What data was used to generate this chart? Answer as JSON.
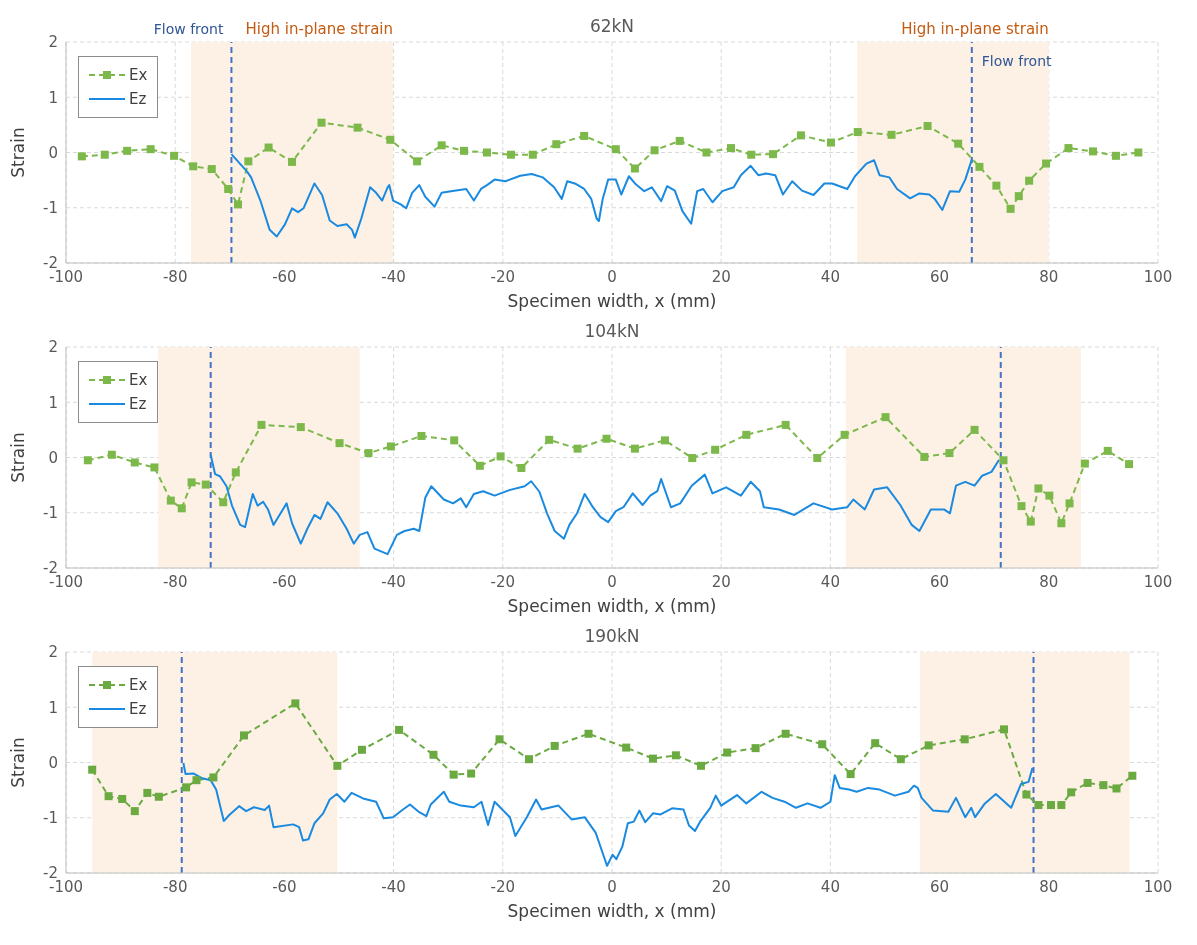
{
  "chart_data": [
    {
      "type": "line",
      "title": "62kN",
      "xlabel": "Specimen width, x (mm)",
      "ylabel": "Strain",
      "xlim": [
        -100,
        100
      ],
      "ylim": [
        -2,
        2
      ],
      "xticks": [
        -100,
        -80,
        -60,
        -40,
        -20,
        0,
        20,
        40,
        60,
        80,
        100
      ],
      "yticks": [
        -2,
        -1,
        0,
        1,
        2
      ],
      "grid": true,
      "legend": "top left",
      "series": [
        {
          "name": "Ex",
          "color": "#7cb84a",
          "marker": "square",
          "line_style": "dashed",
          "x": [
            -97.1,
            -92.9,
            -88.8,
            -84.5,
            -80.2,
            -76.7,
            -73.3,
            -70.3,
            -68.5,
            -66.6,
            -62.9,
            -58.6,
            -53.2,
            -46.6,
            -40.6,
            -35.7,
            -31.2,
            -27.1,
            -22.9,
            -18.5,
            -14.5,
            -10.2,
            -5.1,
            0.7,
            4.2,
            7.8,
            12.4,
            17.3,
            21.8,
            25.5,
            29.5,
            34.6,
            40.1,
            45.0,
            51.2,
            57.8,
            63.4,
            67.3,
            70.4,
            73.0,
            74.5,
            76.4,
            79.5,
            83.6,
            88.1,
            92.3,
            96.4
          ],
          "values": [
            -0.07,
            -0.04,
            0.03,
            0.06,
            -0.06,
            -0.25,
            -0.3,
            -0.66,
            -0.94,
            -0.16,
            0.09,
            -0.17,
            0.54,
            0.45,
            0.23,
            -0.16,
            0.13,
            0.03,
            0,
            -0.04,
            -0.04,
            0.15,
            0.3,
            0.06,
            -0.29,
            0.04,
            0.21,
            0,
            0.08,
            -0.04,
            -0.03,
            0.31,
            0.18,
            0.37,
            0.32,
            0.48,
            0.16,
            -0.26,
            -0.6,
            -1.02,
            -0.79,
            -0.51,
            -0.2,
            0.08,
            0.02,
            -0.06,
            0
          ]
        },
        {
          "name": "Ez",
          "color": "#1a8ae0",
          "marker": "none",
          "line_style": "solid",
          "x": [
            -69.7,
            -68.8,
            -66.8,
            -66.1,
            -64.4,
            -62.7,
            -61.4,
            -59.9,
            -58.6,
            -57.5,
            -56.5,
            -54.5,
            -53.1,
            -51.7,
            -50.3,
            -48.6,
            -47.6,
            -47.1,
            -45.9,
            -44.3,
            -43.2,
            -42.1,
            -41.1,
            -40.8,
            -40.1,
            -38.7,
            -37.7,
            -36.6,
            -35.3,
            -34.2,
            -32.5,
            -31.2,
            -29.5,
            -26.7,
            -25.3,
            -24.0,
            -22.9,
            -21.5,
            -19.5,
            -16.8,
            -14.7,
            -12.7,
            -10.6,
            -9.2,
            -8.2,
            -6.8,
            -5.1,
            -3.8,
            -2.8,
            -2.4,
            -1.7,
            -0.7,
            0.7,
            1.7,
            3.1,
            4.2,
            5.9,
            7.3,
            9.0,
            10.1,
            11.5,
            12.9,
            14.5,
            15.6,
            16.7,
            18.4,
            20.2,
            22.3,
            23.6,
            25.4,
            26.8,
            28.2,
            29.9,
            31.3,
            33.0,
            34.8,
            36.9,
            38.9,
            40.3,
            43.1,
            44.5,
            46.6,
            48.0,
            49.0,
            50.8,
            52.2,
            54.6,
            56.3,
            58.1,
            59.1,
            60.5,
            61.9,
            63.6,
            64.7,
            65.9
          ],
          "values": [
            -0.03,
            -0.13,
            -0.35,
            -0.45,
            -0.87,
            -1.4,
            -1.52,
            -1.3,
            -1.01,
            -1.08,
            -1.01,
            -0.56,
            -0.77,
            -1.23,
            -1.33,
            -1.3,
            -1.4,
            -1.54,
            -1.19,
            -0.63,
            -0.73,
            -0.87,
            -0.63,
            -0.59,
            -0.87,
            -0.94,
            -1.01,
            -0.73,
            -0.59,
            -0.8,
            -0.98,
            -0.73,
            -0.7,
            -0.66,
            -0.87,
            -0.66,
            -0.59,
            -0.49,
            -0.52,
            -0.42,
            -0.39,
            -0.45,
            -0.63,
            -0.84,
            -0.52,
            -0.56,
            -0.66,
            -0.84,
            -1.2,
            -1.24,
            -0.84,
            -0.49,
            -0.49,
            -0.76,
            -0.43,
            -0.56,
            -0.7,
            -0.63,
            -0.88,
            -0.61,
            -0.69,
            -1.06,
            -1.29,
            -0.7,
            -0.66,
            -0.9,
            -0.7,
            -0.63,
            -0.41,
            -0.24,
            -0.41,
            -0.38,
            -0.41,
            -0.76,
            -0.52,
            -0.69,
            -0.77,
            -0.56,
            -0.56,
            -0.66,
            -0.43,
            -0.2,
            -0.14,
            -0.41,
            -0.45,
            -0.66,
            -0.83,
            -0.74,
            -0.76,
            -0.84,
            -1.04,
            -0.7,
            -0.71,
            -0.49,
            -0.13
          ]
        }
      ],
      "ref_lines": [
        {
          "axis": "x",
          "value": -69.7,
          "label": "Flow front",
          "color": "#4472c4",
          "line_style": "dashed"
        },
        {
          "axis": "x",
          "value": 65.9,
          "label": "Flow front",
          "color": "#4472c4",
          "line_style": "dashed"
        }
      ],
      "bands": [
        {
          "axis": "x",
          "from": -77.1,
          "to": -40.1,
          "label": "High in-plane strain",
          "color": "#fdf1e6"
        },
        {
          "axis": "x",
          "from": 44.9,
          "to": 80.0,
          "label": "High in-plane strain",
          "color": "#fdf1e6"
        }
      ]
    },
    {
      "type": "line",
      "title": "104kN",
      "xlabel": "Specimen width, x (mm)",
      "ylabel": "Strain",
      "xlim": [
        -100,
        100
      ],
      "ylim": [
        -2,
        2
      ],
      "xticks": [
        -100,
        -80,
        -60,
        -40,
        -20,
        0,
        20,
        40,
        60,
        80,
        100
      ],
      "yticks": [
        -2,
        -1,
        0,
        1,
        2
      ],
      "grid": true,
      "legend": "top left",
      "series": [
        {
          "name": "Ex",
          "color": "#7cb84a",
          "marker": "square",
          "line_style": "dashed",
          "x": [
            -96.0,
            -91.6,
            -87.4,
            -83.8,
            -80.8,
            -78.8,
            -77.0,
            -74.4,
            -71.2,
            -68.9,
            -64.2,
            -57.0,
            -49.9,
            -44.6,
            -40.5,
            -34.9,
            -28.9,
            -24.2,
            -20.4,
            -16.6,
            -11.5,
            -6.3,
            -1.0,
            4.2,
            9.7,
            14.7,
            18.9,
            24.6,
            31.8,
            37.6,
            42.6,
            50.1,
            57.2,
            61.8,
            66.4,
            71.7,
            75.0,
            76.7,
            78.1,
            80.1,
            82.3,
            83.8,
            86.6,
            90.8,
            94.7
          ],
          "values": [
            -0.05,
            0.05,
            -0.09,
            -0.18,
            -0.78,
            -0.92,
            -0.45,
            -0.49,
            -0.81,
            -0.27,
            0.59,
            0.55,
            0.26,
            0.08,
            0.2,
            0.39,
            0.31,
            -0.15,
            0.02,
            -0.19,
            0.32,
            0.16,
            0.34,
            0.16,
            0.31,
            -0.01,
            0.14,
            0.41,
            0.59,
            -0.01,
            0.41,
            0.73,
            0.01,
            0.08,
            0.5,
            -0.05,
            -0.88,
            -1.16,
            -0.56,
            -0.69,
            -1.19,
            -0.83,
            -0.11,
            0.12,
            -0.12
          ]
        },
        {
          "name": "Ez",
          "color": "#1a8ae0",
          "marker": "none",
          "line_style": "solid",
          "x": [
            -73.5,
            -72.7,
            -71.8,
            -70.6,
            -69.6,
            -68.1,
            -67.2,
            -65.8,
            -64.9,
            -63.9,
            -63.0,
            -62.0,
            -59.6,
            -58.6,
            -57.0,
            -55.8,
            -54.5,
            -53.4,
            -52.1,
            -50.3,
            -48.6,
            -47.3,
            -46.2,
            -44.8,
            -43.5,
            -41.1,
            -39.4,
            -38.0,
            -36.3,
            -35.3,
            -34.2,
            -33.1,
            -30.8,
            -29.1,
            -27.7,
            -26.7,
            -25.3,
            -23.6,
            -21.5,
            -18.8,
            -16.0,
            -14.8,
            -13.3,
            -11.9,
            -10.5,
            -8.8,
            -7.8,
            -6.4,
            -5.0,
            -3.5,
            -2.1,
            -0.7,
            0.7,
            2.1,
            3.8,
            5.6,
            7.0,
            8.3,
            9.0,
            10.8,
            12.5,
            14.6,
            17.0,
            18.4,
            20.9,
            23.6,
            25.4,
            27.1,
            27.8,
            30.6,
            33.4,
            36.9,
            40.3,
            43.1,
            44.2,
            46.3,
            48.0,
            50.4,
            52.8,
            54.9,
            56.3,
            58.4,
            60.8,
            61.9,
            63.0,
            64.7,
            66.4,
            67.8,
            69.5,
            70.9
          ],
          "values": [
            0.05,
            -0.3,
            -0.34,
            -0.52,
            -0.87,
            -1.22,
            -1.26,
            -0.66,
            -0.87,
            -0.8,
            -0.94,
            -1.22,
            -0.83,
            -1.19,
            -1.56,
            -1.29,
            -1.04,
            -1.11,
            -0.81,
            -1.01,
            -1.29,
            -1.56,
            -1.4,
            -1.35,
            -1.65,
            -1.75,
            -1.4,
            -1.33,
            -1.29,
            -1.33,
            -0.73,
            -0.52,
            -0.76,
            -0.83,
            -0.74,
            -0.9,
            -0.66,
            -0.61,
            -0.69,
            -0.59,
            -0.52,
            -0.43,
            -0.62,
            -1.01,
            -1.33,
            -1.47,
            -1.22,
            -1.01,
            -0.66,
            -0.9,
            -1.08,
            -1.17,
            -0.97,
            -0.9,
            -0.65,
            -0.86,
            -0.69,
            -0.61,
            -0.39,
            -0.9,
            -0.83,
            -0.51,
            -0.31,
            -0.65,
            -0.54,
            -0.69,
            -0.44,
            -0.61,
            -0.9,
            -0.94,
            -1.04,
            -0.83,
            -0.94,
            -0.9,
            -0.76,
            -0.94,
            -0.58,
            -0.54,
            -0.86,
            -1.22,
            -1.33,
            -0.94,
            -0.94,
            -1.01,
            -0.51,
            -0.44,
            -0.51,
            -0.33,
            -0.26,
            -0.04
          ]
        }
      ],
      "ref_lines": [
        {
          "axis": "x",
          "value": -73.5,
          "color": "#4472c4",
          "line_style": "dashed"
        },
        {
          "axis": "x",
          "value": 71.2,
          "color": "#4472c4",
          "line_style": "dashed"
        }
      ],
      "bands": [
        {
          "axis": "x",
          "from": -83.1,
          "to": -46.2,
          "color": "#fdf1e6"
        },
        {
          "axis": "x",
          "from": 42.8,
          "to": 85.9,
          "color": "#fdf1e6"
        }
      ]
    },
    {
      "type": "line",
      "title": "190kN",
      "xlabel": "Specimen width, x (mm)",
      "ylabel": "Strain",
      "xlim": [
        -100,
        100
      ],
      "ylim": [
        -2,
        2
      ],
      "xticks": [
        -100,
        -80,
        -60,
        -40,
        -20,
        0,
        20,
        40,
        60,
        80,
        100
      ],
      "yticks": [
        -2,
        -1,
        0,
        1,
        2
      ],
      "grid": true,
      "legend": "top left",
      "series": [
        {
          "name": "Ex",
          "color": "#6aaa40",
          "marker": "square",
          "line_style": "dashed",
          "x": [
            -95.2,
            -92.2,
            -89.7,
            -87.4,
            -85.1,
            -83.0,
            -78.0,
            -76.1,
            -73.0,
            -67.4,
            -58.0,
            -50.3,
            -45.8,
            -39.0,
            -32.7,
            -29.0,
            -25.8,
            -20.6,
            -15.2,
            -10.5,
            -4.3,
            2.6,
            7.5,
            11.7,
            16.3,
            21.1,
            26.3,
            31.8,
            38.5,
            43.7,
            48.2,
            52.9,
            58.0,
            64.6,
            71.8,
            75.9,
            78.1,
            80.4,
            82.3,
            84.1,
            87.1,
            90.0,
            92.4,
            95.3
          ],
          "values": [
            -0.13,
            -0.61,
            -0.66,
            -0.88,
            -0.55,
            -0.62,
            -0.45,
            -0.32,
            -0.27,
            0.49,
            1.07,
            -0.06,
            0.23,
            0.59,
            0.14,
            -0.22,
            -0.2,
            0.42,
            0.06,
            0.3,
            0.52,
            0.27,
            0.07,
            0.13,
            -0.06,
            0.18,
            0.26,
            0.52,
            0.33,
            -0.21,
            0.35,
            0.06,
            0.31,
            0.42,
            0.6,
            -0.58,
            -0.77,
            -0.77,
            -0.77,
            -0.54,
            -0.37,
            -0.41,
            -0.47,
            -0.24
          ]
        },
        {
          "name": "Ez",
          "color": "#1a8ae0",
          "marker": "none",
          "line_style": "solid",
          "x": [
            -78.5,
            -78.1,
            -76.6,
            -75.2,
            -73.5,
            -72.5,
            -71.1,
            -70.1,
            -68.3,
            -67.0,
            -65.6,
            -63.6,
            -62.8,
            -62.0,
            -58.4,
            -57.3,
            -56.6,
            -55.6,
            -54.5,
            -52.9,
            -51.7,
            -50.4,
            -49.0,
            -47.7,
            -45.6,
            -43.2,
            -41.8,
            -40.1,
            -38.4,
            -37.0,
            -35.3,
            -34.0,
            -33.2,
            -30.8,
            -29.8,
            -27.7,
            -25.3,
            -23.9,
            -22.7,
            -21.5,
            -18.7,
            -17.7,
            -15.6,
            -13.9,
            -12.9,
            -9.8,
            -7.4,
            -5.0,
            -3.0,
            -1.6,
            -0.9,
            0.1,
            0.8,
            1.9,
            2.9,
            4.0,
            5.0,
            6.1,
            7.5,
            8.9,
            11.0,
            13.1,
            14.1,
            15.2,
            16.2,
            18.0,
            19.0,
            20.0,
            22.9,
            24.6,
            27.4,
            29.4,
            31.6,
            33.7,
            35.8,
            38.2,
            40.0,
            40.8,
            41.7,
            43.4,
            44.8,
            46.9,
            49.0,
            51.8,
            54.3,
            55.3,
            56.0,
            56.7,
            58.8,
            61.6,
            63.0,
            64.7,
            65.8,
            66.5,
            68.3,
            70.3,
            73.1,
            74.9,
            76.3,
            77.0
          ],
          "values": [
            -0.01,
            -0.21,
            -0.2,
            -0.28,
            -0.32,
            -0.49,
            -1.06,
            -0.95,
            -0.79,
            -0.88,
            -0.81,
            -0.86,
            -0.78,
            -1.17,
            -1.12,
            -1.17,
            -1.41,
            -1.39,
            -1.1,
            -0.92,
            -0.67,
            -0.57,
            -0.71,
            -0.55,
            -0.65,
            -0.71,
            -1.01,
            -0.99,
            -0.86,
            -0.76,
            -0.9,
            -0.97,
            -0.76,
            -0.53,
            -0.71,
            -0.78,
            -0.81,
            -0.71,
            -1.13,
            -0.71,
            -0.99,
            -1.33,
            -0.99,
            -0.67,
            -0.85,
            -0.78,
            -1.03,
            -0.99,
            -1.27,
            -1.67,
            -1.87,
            -1.67,
            -1.75,
            -1.52,
            -1.1,
            -1.07,
            -0.87,
            -1.08,
            -0.92,
            -0.94,
            -0.83,
            -0.85,
            -1.14,
            -1.24,
            -1.06,
            -0.82,
            -0.6,
            -0.78,
            -0.59,
            -0.74,
            -0.53,
            -0.64,
            -0.71,
            -0.82,
            -0.74,
            -0.82,
            -0.71,
            -0.23,
            -0.46,
            -0.49,
            -0.53,
            -0.46,
            -0.49,
            -0.6,
            -0.53,
            -0.42,
            -0.46,
            -0.64,
            -0.87,
            -0.89,
            -0.64,
            -0.99,
            -0.82,
            -0.99,
            -0.74,
            -0.57,
            -0.82,
            -0.39,
            -0.35,
            -0.1
          ]
        }
      ],
      "ref_lines": [
        {
          "axis": "x",
          "value": -78.8,
          "color": "#4472c4",
          "line_style": "dashed"
        },
        {
          "axis": "x",
          "value": 77.2,
          "color": "#4472c4",
          "line_style": "dashed"
        }
      ],
      "bands": [
        {
          "axis": "x",
          "from": -95.2,
          "to": -50.3,
          "color": "#fdf1e6"
        },
        {
          "axis": "x",
          "from": 56.4,
          "to": 94.8,
          "color": "#fdf1e6"
        }
      ]
    }
  ]
}
